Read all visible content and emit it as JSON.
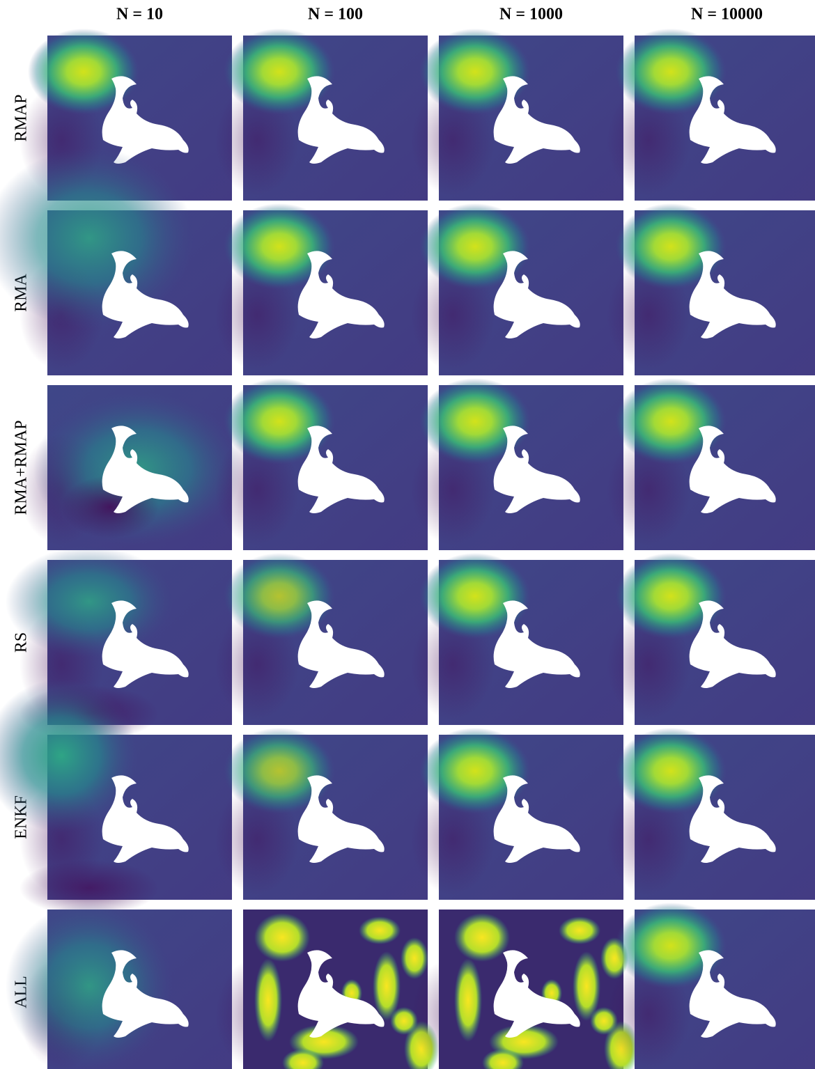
{
  "columns": [
    "N = 10",
    "N = 100",
    "N = 1000",
    "N = 10000"
  ],
  "rows": [
    "RMAP",
    "RMA",
    "RMA+RMAP",
    "RS",
    "ENKF",
    "ALL"
  ]
}
